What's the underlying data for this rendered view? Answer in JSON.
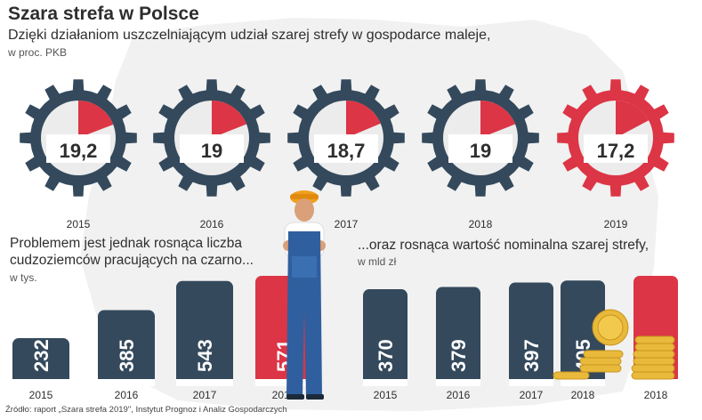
{
  "header": {
    "title": "Szara strefa w Polsce",
    "subtitle": "Dzięki działaniom uszczelniającym udział szarej strefy w gospodarce maleje,",
    "unit": "w proc. PKB"
  },
  "left_section": {
    "title": "Problemem jest jednak rosnąca liczba cudzoziemców pracujących na czarno...",
    "unit": "w tys."
  },
  "right_section": {
    "title": "...oraz rosnąca wartość nominalna szarej strefy,",
    "unit": "w mld zł"
  },
  "source": "Źródło: raport „Szara strefa 2019\", Instytut Prognoz i Analiz Gospodarczych",
  "colors": {
    "dark": "#34495c",
    "red": "#dc3545",
    "gear_inner": "#ececec"
  },
  "chart_data": [
    {
      "type": "pie",
      "title": "Dzięki działaniom uszczelniającym udział szarej strefy w gospodarce maleje,",
      "ylabel": "w proc. PKB",
      "categories": [
        "2015",
        "2016",
        "2017",
        "2018",
        "2019"
      ],
      "values": [
        19.2,
        19,
        18.7,
        19,
        17.2
      ],
      "labels": [
        "19,2",
        "19",
        "18,7",
        "19",
        "17,2"
      ],
      "highlight": "2019"
    },
    {
      "type": "bar",
      "title": "Problemem jest jednak rosnąca liczba cudzoziemców pracujących na czarno...",
      "ylabel": "w tys.",
      "categories": [
        "2015",
        "2016",
        "2017",
        "2018"
      ],
      "values": [
        232,
        385,
        543,
        571
      ],
      "highlight": "2018"
    },
    {
      "type": "bar",
      "title": "...oraz rosnąca wartość nominalna szarej strefy,",
      "ylabel": "w mld zł",
      "categories": [
        "2015",
        "2016",
        "2017",
        "2018",
        "2018"
      ],
      "values": [
        370,
        379,
        397,
        405,
        424
      ],
      "highlight_index": 4
    }
  ]
}
